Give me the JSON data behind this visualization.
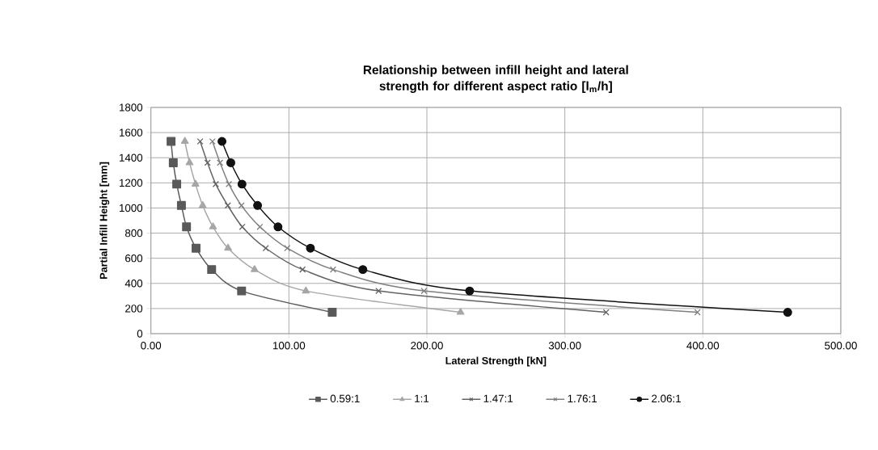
{
  "chart_data": {
    "type": "line",
    "title": "Relationship between infill height and lateral strength for different aspect ratio [l$_{m}$/h]",
    "xlabel": "Lateral  Strength [kN]",
    "ylabel": "Partial Infill Height [mm]",
    "xlim": [
      0,
      500
    ],
    "ylim": [
      0,
      1800
    ],
    "xticks": [
      {
        "value": 0,
        "label": "0.00"
      },
      {
        "value": 100,
        "label": "100.00"
      },
      {
        "value": 200,
        "label": "200.00"
      },
      {
        "value": 300,
        "label": "300.00"
      },
      {
        "value": 400,
        "label": "400.00"
      },
      {
        "value": 500,
        "label": "500.00"
      }
    ],
    "yticks": [
      0,
      200,
      400,
      600,
      800,
      1000,
      1200,
      1400,
      1600,
      1800
    ],
    "grid": true,
    "legend": "bottom",
    "series": [
      {
        "name": "0.59:1",
        "color": "#595959",
        "marker": "square",
        "x": [
          131.4,
          65.7,
          44,
          32.7,
          25.8,
          22.1,
          18.7,
          16.2,
          14.6
        ],
        "values": [
          170,
          340,
          510,
          680,
          850,
          1020,
          1190,
          1360,
          1530
        ]
      },
      {
        "name": "1:1",
        "color": "#a6a6a6",
        "marker": "triangle",
        "x": [
          224.4,
          112.3,
          75.1,
          55.9,
          45,
          37.5,
          32.3,
          28,
          24.6
        ],
        "values": [
          170,
          340,
          510,
          680,
          850,
          1020,
          1190,
          1360,
          1530
        ]
      },
      {
        "name": "1.47:1",
        "color": "#626262",
        "marker": "cross",
        "x": [
          329.9,
          165,
          109.9,
          83.2,
          66.2,
          55.7,
          47,
          41,
          35.7
        ],
        "values": [
          170,
          340,
          510,
          680,
          850,
          1020,
          1190,
          1360,
          1530
        ]
      },
      {
        "name": "1.76:1",
        "color": "#7f7f7f",
        "marker": "cross",
        "x": [
          396.1,
          197.9,
          132,
          98.8,
          79,
          65.6,
          56.5,
          50.1,
          44.6
        ],
        "values": [
          170,
          340,
          510,
          680,
          850,
          1020,
          1190,
          1360,
          1530
        ]
      },
      {
        "name": "2.06:1",
        "color": "#111111",
        "marker": "circle",
        "x": [
          461.5,
          231,
          153.6,
          115.6,
          92.1,
          77.3,
          66,
          57.9,
          51.5
        ],
        "values": [
          170,
          340,
          510,
          680,
          850,
          1020,
          1190,
          1360,
          1530
        ]
      }
    ]
  }
}
